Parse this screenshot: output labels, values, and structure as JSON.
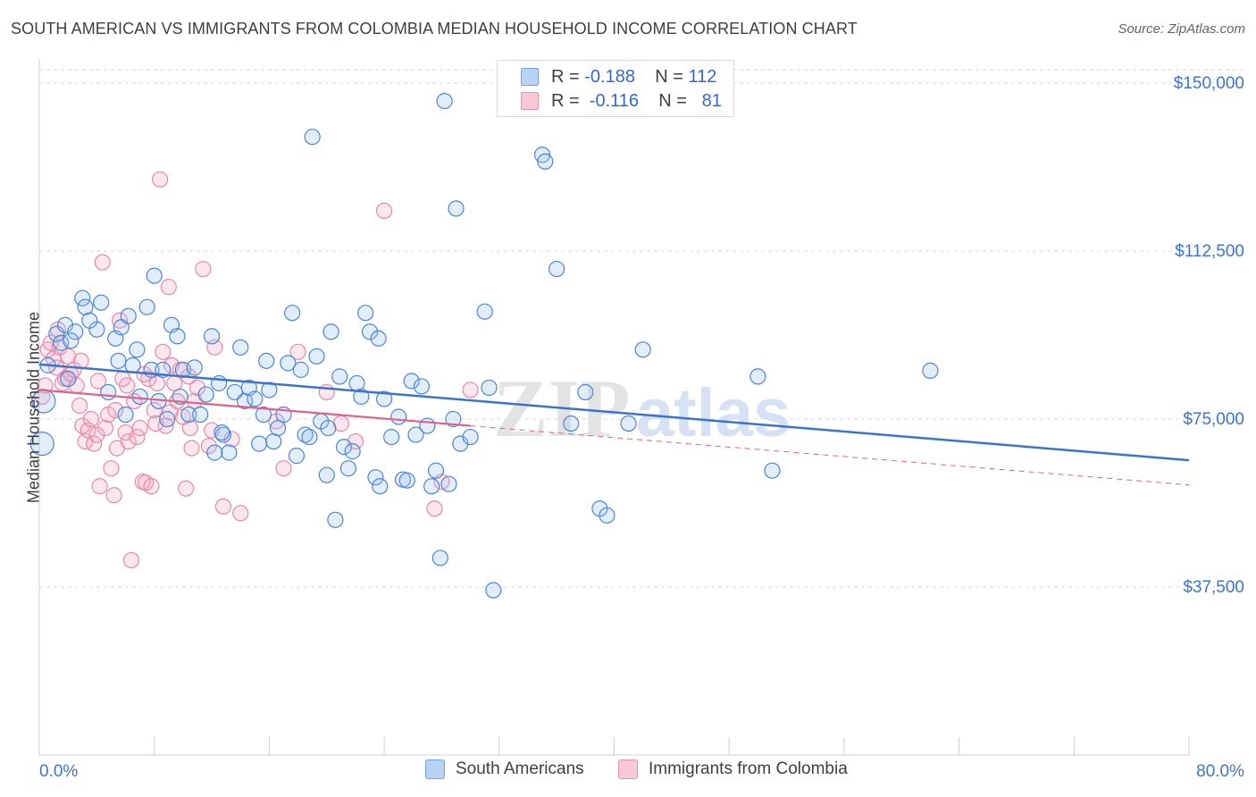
{
  "title": "SOUTH AMERICAN VS IMMIGRANTS FROM COLOMBIA MEDIAN HOUSEHOLD INCOME CORRELATION CHART",
  "source": "Source: ZipAtlas.com",
  "watermark": "ZIPatlas",
  "legend_stats": {
    "r_label": "R =",
    "n_label": "N =",
    "rows": [
      {
        "r": "-0.188",
        "n": "112",
        "color": "#6fa3e6",
        "fill": "#b8d3f4"
      },
      {
        "r": "-0.116",
        "n": "81",
        "color": "#ee8fab",
        "fill": "#f9c8d6"
      }
    ]
  },
  "bottom_legend": [
    "South Americans",
    "Immigrants from Colombia"
  ],
  "colors": {
    "blue": "#4a86d8",
    "blue_line": "#3b74cc",
    "pink": "#e889a8",
    "pink_line": "#e0608a",
    "axis_text": "#3c74d0",
    "grid": "#d9d9d9"
  },
  "chart_data": {
    "type": "scatter",
    "title": "SOUTH AMERICAN VS IMMIGRANTS FROM COLOMBIA MEDIAN HOUSEHOLD INCOME CORRELATION CHART",
    "xlabel": "",
    "ylabel": "Median Household Income",
    "xlim": [
      0,
      80
    ],
    "ylim": [
      0,
      153000
    ],
    "x_tick_labels": [
      "0.0%",
      "80.0%"
    ],
    "y_ticks": [
      37500,
      75000,
      112500,
      150000
    ],
    "y_tick_labels": [
      "$37,500",
      "$75,000",
      "$112,500",
      "$150,000"
    ],
    "grid": true,
    "series": [
      {
        "name": "South Americans",
        "r": -0.188,
        "n": 112,
        "trend": {
          "x": [
            0,
            80
          ],
          "y": [
            87200,
            65800
          ]
        },
        "points": [
          [
            0.2,
            69500
          ],
          [
            0.3,
            79000
          ],
          [
            0.6,
            87000
          ],
          [
            1.2,
            94000
          ],
          [
            1.5,
            92000
          ],
          [
            1.8,
            96000
          ],
          [
            2.0,
            84000
          ],
          [
            2.5,
            94500
          ],
          [
            3.0,
            102000
          ],
          [
            3.2,
            100000
          ],
          [
            4.0,
            95000
          ],
          [
            4.3,
            101000
          ],
          [
            4.8,
            81000
          ],
          [
            5.3,
            93000
          ],
          [
            5.5,
            88000
          ],
          [
            5.7,
            95500
          ],
          [
            6.2,
            98000
          ],
          [
            6.5,
            87000
          ],
          [
            6.8,
            90500
          ],
          [
            7.0,
            80000
          ],
          [
            7.5,
            100000
          ],
          [
            7.8,
            86000
          ],
          [
            8.0,
            107000
          ],
          [
            8.3,
            79000
          ],
          [
            8.6,
            86000
          ],
          [
            8.9,
            75000
          ],
          [
            9.2,
            96000
          ],
          [
            9.6,
            93500
          ],
          [
            10.0,
            86000
          ],
          [
            10.4,
            76000
          ],
          [
            10.8,
            86500
          ],
          [
            11.2,
            76000
          ],
          [
            11.6,
            80500
          ],
          [
            12.0,
            93500
          ],
          [
            12.2,
            67500
          ],
          [
            12.5,
            83000
          ],
          [
            12.8,
            71500
          ],
          [
            13.2,
            67500
          ],
          [
            13.6,
            81000
          ],
          [
            14.0,
            91000
          ],
          [
            14.3,
            79000
          ],
          [
            14.6,
            82000
          ],
          [
            15.0,
            79500
          ],
          [
            15.3,
            69500
          ],
          [
            15.6,
            76000
          ],
          [
            16.0,
            81500
          ],
          [
            16.3,
            70000
          ],
          [
            16.6,
            73000
          ],
          [
            17.0,
            76000
          ],
          [
            17.3,
            87500
          ],
          [
            17.6,
            98700
          ],
          [
            17.9,
            66800
          ],
          [
            18.2,
            86000
          ],
          [
            18.5,
            71500
          ],
          [
            18.8,
            71000
          ],
          [
            19.0,
            138000
          ],
          [
            19.3,
            89000
          ],
          [
            19.6,
            74500
          ],
          [
            20.0,
            62500
          ],
          [
            20.3,
            94500
          ],
          [
            20.6,
            52500
          ],
          [
            20.9,
            84500
          ],
          [
            21.2,
            68800
          ],
          [
            21.5,
            64000
          ],
          [
            21.8,
            67800
          ],
          [
            22.1,
            83000
          ],
          [
            22.4,
            80000
          ],
          [
            22.7,
            98700
          ],
          [
            23.0,
            94500
          ],
          [
            23.4,
            62000
          ],
          [
            23.7,
            60000
          ],
          [
            24.0,
            79500
          ],
          [
            24.5,
            71000
          ],
          [
            25.0,
            75500
          ],
          [
            25.3,
            61500
          ],
          [
            25.6,
            61300
          ],
          [
            25.9,
            83500
          ],
          [
            26.2,
            71500
          ],
          [
            26.6,
            82300
          ],
          [
            27.0,
            73500
          ],
          [
            27.3,
            60000
          ],
          [
            27.6,
            63500
          ],
          [
            27.9,
            44000
          ],
          [
            28.2,
            146000
          ],
          [
            28.5,
            60500
          ],
          [
            28.8,
            75000
          ],
          [
            29.0,
            122000
          ],
          [
            29.3,
            69500
          ],
          [
            30.0,
            71000
          ],
          [
            31.0,
            99000
          ],
          [
            31.3,
            82000
          ],
          [
            31.6,
            36800
          ],
          [
            35.0,
            134000
          ],
          [
            35.2,
            132500
          ],
          [
            36.0,
            108500
          ],
          [
            37.0,
            74000
          ],
          [
            38.0,
            81000
          ],
          [
            39.0,
            55000
          ],
          [
            39.5,
            53500
          ],
          [
            41.0,
            74000
          ],
          [
            42.0,
            90500
          ],
          [
            50.0,
            84500
          ],
          [
            51.0,
            63500
          ],
          [
            62.0,
            85800
          ],
          [
            2.2,
            92500
          ],
          [
            3.5,
            97000
          ],
          [
            6.0,
            76000
          ],
          [
            9.8,
            80000
          ],
          [
            15.8,
            88000
          ],
          [
            23.6,
            93000
          ],
          [
            12.7,
            72000
          ],
          [
            20.1,
            73000
          ]
        ]
      },
      {
        "name": "Immigrants from Colombia",
        "r": -0.116,
        "n": 81,
        "trend": {
          "x": [
            0,
            30
          ],
          "y": [
            81500,
            73500
          ]
        },
        "trend_dashed": {
          "x": [
            30,
            80
          ],
          "y": [
            73500,
            60300
          ]
        },
        "points": [
          [
            0.2,
            80000
          ],
          [
            0.4,
            82500
          ],
          [
            0.6,
            90500
          ],
          [
            0.8,
            92000
          ],
          [
            1.0,
            88500
          ],
          [
            1.2,
            86500
          ],
          [
            1.4,
            91000
          ],
          [
            1.6,
            83000
          ],
          [
            1.8,
            84000
          ],
          [
            2.0,
            89000
          ],
          [
            2.2,
            85000
          ],
          [
            2.4,
            86000
          ],
          [
            2.6,
            82500
          ],
          [
            2.8,
            78000
          ],
          [
            3.0,
            73500
          ],
          [
            3.2,
            70000
          ],
          [
            3.4,
            72500
          ],
          [
            3.6,
            75000
          ],
          [
            3.8,
            69500
          ],
          [
            4.0,
            71500
          ],
          [
            4.2,
            60000
          ],
          [
            4.4,
            110000
          ],
          [
            4.6,
            73000
          ],
          [
            4.8,
            76000
          ],
          [
            5.0,
            64000
          ],
          [
            5.2,
            58000
          ],
          [
            5.4,
            68500
          ],
          [
            5.6,
            97000
          ],
          [
            5.8,
            84000
          ],
          [
            6.0,
            72000
          ],
          [
            6.2,
            70000
          ],
          [
            6.4,
            43500
          ],
          [
            6.6,
            79000
          ],
          [
            6.8,
            71000
          ],
          [
            7.0,
            73000
          ],
          [
            7.2,
            61000
          ],
          [
            7.4,
            60800
          ],
          [
            7.6,
            84000
          ],
          [
            7.8,
            60000
          ],
          [
            8.0,
            77000
          ],
          [
            8.2,
            83000
          ],
          [
            8.4,
            128500
          ],
          [
            8.6,
            90000
          ],
          [
            8.8,
            73500
          ],
          [
            9.0,
            104500
          ],
          [
            9.2,
            87000
          ],
          [
            9.4,
            83000
          ],
          [
            9.6,
            79000
          ],
          [
            9.8,
            86000
          ],
          [
            10.0,
            75500
          ],
          [
            10.2,
            59500
          ],
          [
            10.4,
            84500
          ],
          [
            10.6,
            68500
          ],
          [
            10.8,
            79000
          ],
          [
            11.0,
            82000
          ],
          [
            11.4,
            108500
          ],
          [
            11.8,
            69000
          ],
          [
            12.2,
            91000
          ],
          [
            12.8,
            55500
          ],
          [
            13.4,
            70500
          ],
          [
            14.0,
            54000
          ],
          [
            16.5,
            74500
          ],
          [
            17.0,
            64000
          ],
          [
            18.0,
            90000
          ],
          [
            20.0,
            81000
          ],
          [
            21.0,
            74000
          ],
          [
            22.0,
            70000
          ],
          [
            24.0,
            121500
          ],
          [
            27.5,
            55000
          ],
          [
            28.0,
            61000
          ],
          [
            30.0,
            81500
          ],
          [
            1.3,
            95000
          ],
          [
            2.9,
            88000
          ],
          [
            4.1,
            83500
          ],
          [
            5.3,
            77000
          ],
          [
            6.1,
            82500
          ],
          [
            7.3,
            85000
          ],
          [
            8.1,
            74000
          ],
          [
            9.1,
            76500
          ],
          [
            10.5,
            73000
          ],
          [
            12.0,
            72500
          ]
        ]
      }
    ]
  }
}
